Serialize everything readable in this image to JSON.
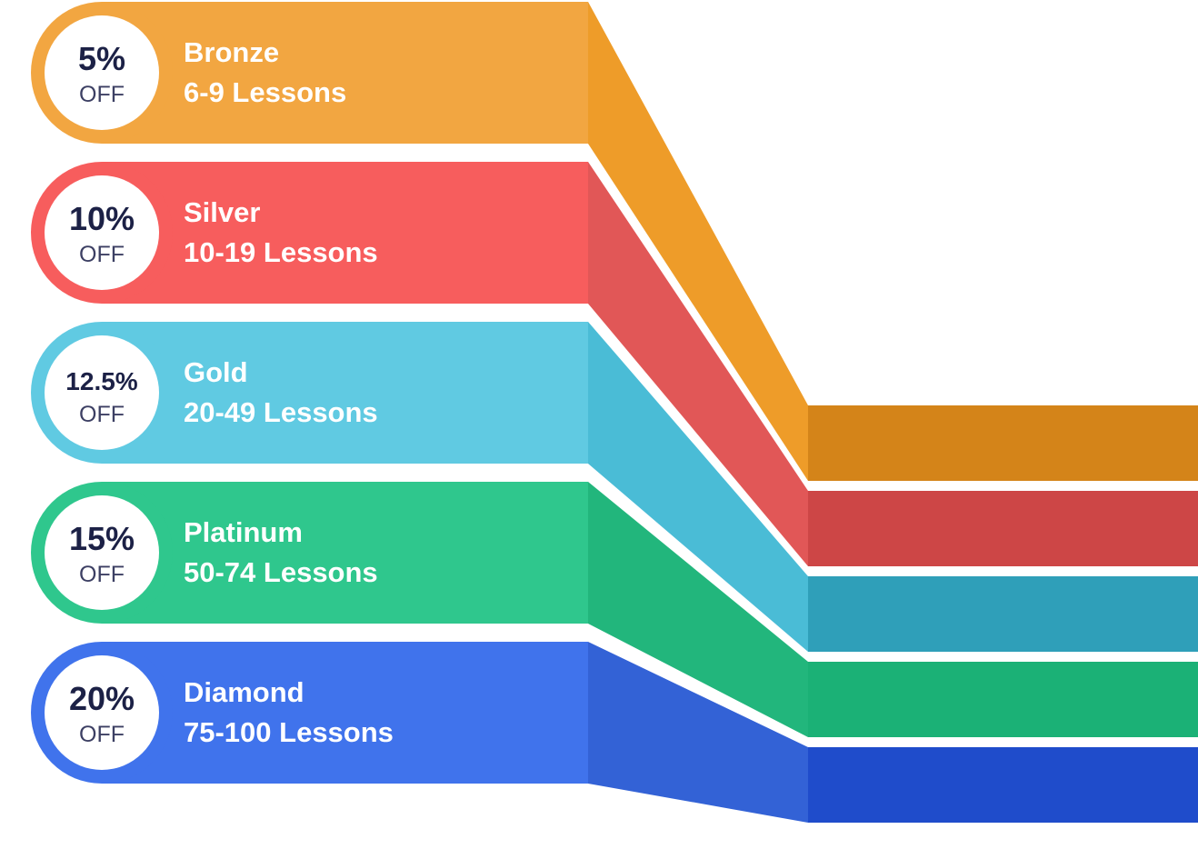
{
  "tiers": [
    {
      "name": "Bronze",
      "range": "6-9 Lessons",
      "discount": "5%",
      "off_label": "OFF",
      "colors": {
        "main": "#F2A641",
        "fold": "#EE9C29",
        "end": "#D48419"
      }
    },
    {
      "name": "Silver",
      "range": "10-19 Lessons",
      "discount": "10%",
      "off_label": "OFF",
      "colors": {
        "main": "#F75D5D",
        "fold": "#E15757",
        "end": "#CD4646"
      }
    },
    {
      "name": "Gold",
      "range": "20-49 Lessons",
      "discount": "12.5%",
      "off_label": "OFF",
      "colors": {
        "main": "#60CAE2",
        "fold": "#4ABCD6",
        "end": "#2F9FB9"
      }
    },
    {
      "name": "Platinum",
      "range": "50-74 Lessons",
      "discount": "15%",
      "off_label": "OFF",
      "colors": {
        "main": "#2FC78D",
        "fold": "#22B67C",
        "end": "#1BB176"
      }
    },
    {
      "name": "Diamond",
      "range": "75-100 Lessons",
      "discount": "20%",
      "off_label": "OFF",
      "colors": {
        "main": "#4073EC",
        "fold": "#3362D6",
        "end": "#1F4CCB"
      }
    }
  ]
}
